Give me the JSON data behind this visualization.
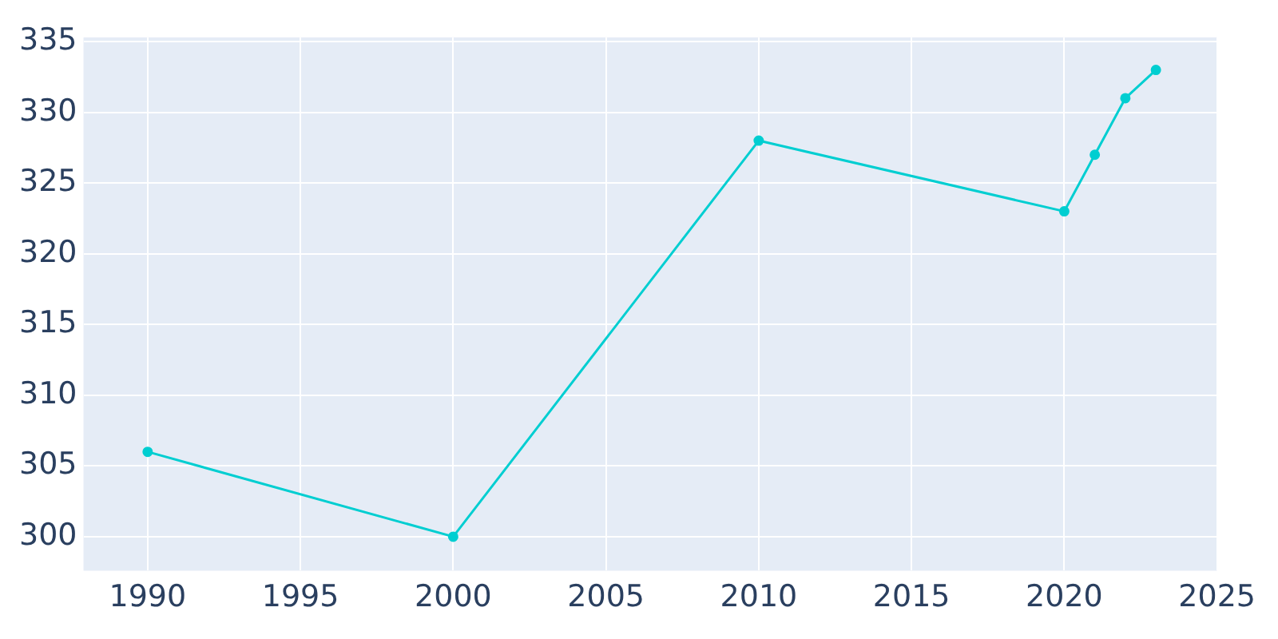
{
  "chart_data": {
    "type": "line",
    "x": [
      1990,
      2000,
      2010,
      2020,
      2021,
      2022,
      2023
    ],
    "series": [
      {
        "color": "#00ced1",
        "values": [
          306,
          300,
          328,
          323,
          327,
          331,
          333
        ]
      }
    ],
    "xlim": [
      1987.9,
      2025
    ],
    "xticks": [
      1990,
      1995,
      2000,
      2005,
      2010,
      2015,
      2020,
      2025
    ],
    "ylim": [
      297.6,
      335.3
    ],
    "yticks": [
      300,
      305,
      310,
      315,
      320,
      325,
      330,
      335
    ],
    "grid": true,
    "marker": "circle",
    "line_style": "solid",
    "legend": false
  }
}
